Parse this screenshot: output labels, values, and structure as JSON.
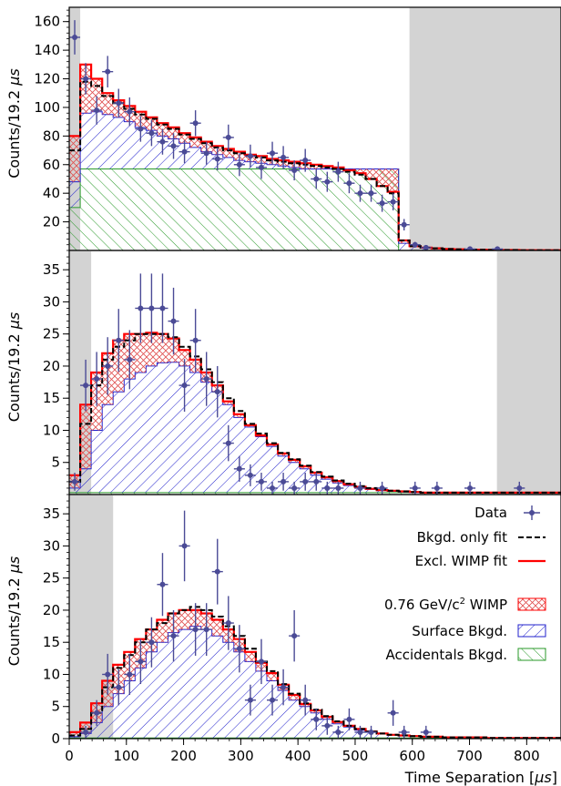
{
  "x_axis": {
    "label": "Time Separation [",
    "label_unit": "μs",
    "label_close": "]",
    "range": [
      0,
      860
    ],
    "ticks": [
      0,
      100,
      200,
      300,
      400,
      500,
      600,
      700,
      800
    ]
  },
  "legend": {
    "data": "Data",
    "bkgd_fit": "Bkgd. only fit",
    "wimp_fit": "Excl. WIMP fit",
    "wimp_prefix": "0.76 GeV/c",
    "wimp_sup": "2",
    "wimp_suffix": " WIMP",
    "surface": "Surface Bkgd.",
    "accidentals": "Accidentals Bkgd."
  },
  "colors": {
    "data": "#4b4b96",
    "wimp_line": "#ff0000",
    "wimp_hatch": "#e05050",
    "surface_hatch": "#2020cc",
    "accidentals_hatch": "#2a9a2a",
    "excluded_region": "#d3d3d3",
    "bkgd_line": "#000000"
  },
  "chart_data": [
    {
      "type": "histogram",
      "ylabel": "Counts/19.2 ",
      "ylabel_unit": "μs",
      "ylim": [
        0,
        170
      ],
      "yticks": [
        20,
        40,
        60,
        80,
        100,
        120,
        140,
        160
      ],
      "excluded_regions": [
        [
          0,
          19.2
        ],
        [
          595,
          860
        ]
      ],
      "bin_width": 19.2,
      "bin_start": 0,
      "accidentals": [
        30,
        57,
        57,
        57,
        57,
        57,
        57,
        57,
        57,
        57,
        57,
        57,
        57,
        57,
        57,
        57,
        57,
        57,
        57,
        57,
        57,
        57,
        57,
        57,
        57,
        57,
        57,
        57,
        57,
        57,
        0,
        0,
        0,
        0,
        0,
        0,
        0,
        0,
        0,
        0,
        0,
        0,
        0,
        0,
        0
      ],
      "surface_plus_accidentals": [
        48,
        96,
        97,
        95,
        93,
        90,
        86,
        84,
        80,
        78,
        75,
        72,
        69,
        67,
        65,
        63,
        62,
        61,
        60,
        59,
        58,
        57,
        57,
        57,
        57,
        57,
        57,
        57,
        57,
        57,
        5,
        3,
        2,
        1.5,
        1,
        0.8,
        0.6,
        0.5,
        0.4,
        0.3,
        0.3,
        0.2,
        0.2,
        0.2,
        0.2
      ],
      "bkgd_fit": [
        70,
        118,
        115,
        108,
        103,
        99,
        95,
        92,
        88,
        85,
        81,
        78,
        75,
        72,
        70,
        68,
        66,
        65,
        63,
        62,
        61,
        60,
        59,
        58,
        57,
        55,
        53,
        50,
        45,
        40,
        7,
        3,
        2,
        1.5,
        1,
        0.8,
        0.6,
        0.5,
        0.4,
        0.3,
        0.3,
        0.2,
        0.2,
        0.2,
        0.2
      ],
      "wimp_fit": [
        80,
        130,
        120,
        110,
        105,
        101,
        97,
        93,
        89,
        86,
        82,
        79,
        76,
        73,
        71,
        69,
        67,
        66,
        64,
        63,
        62,
        61,
        60,
        59,
        58,
        56,
        54,
        50,
        45,
        41,
        7,
        3,
        2,
        1.5,
        1,
        0.8,
        0.6,
        0.5,
        0.4,
        0.3,
        0.3,
        0.2,
        0.2,
        0.2,
        0.2
      ],
      "points": [
        {
          "x": 9.6,
          "y": 149,
          "err": 12
        },
        {
          "x": 28.8,
          "y": 120,
          "err": 11
        },
        {
          "x": 48.0,
          "y": 98,
          "err": 10
        },
        {
          "x": 67.2,
          "y": 125,
          "err": 11
        },
        {
          "x": 86.4,
          "y": 103,
          "err": 10
        },
        {
          "x": 105.6,
          "y": 97,
          "err": 10
        },
        {
          "x": 124.8,
          "y": 85,
          "err": 9
        },
        {
          "x": 144.0,
          "y": 82,
          "err": 9
        },
        {
          "x": 163.2,
          "y": 76,
          "err": 9
        },
        {
          "x": 182.4,
          "y": 73,
          "err": 9
        },
        {
          "x": 201.6,
          "y": 69,
          "err": 8
        },
        {
          "x": 220.8,
          "y": 89,
          "err": 9
        },
        {
          "x": 240.0,
          "y": 68,
          "err": 8
        },
        {
          "x": 259.2,
          "y": 64,
          "err": 8
        },
        {
          "x": 278.4,
          "y": 79,
          "err": 9
        },
        {
          "x": 297.6,
          "y": 60,
          "err": 8
        },
        {
          "x": 316.8,
          "y": 66,
          "err": 8
        },
        {
          "x": 336.0,
          "y": 58,
          "err": 8
        },
        {
          "x": 355.2,
          "y": 68,
          "err": 8
        },
        {
          "x": 374.4,
          "y": 65,
          "err": 8
        },
        {
          "x": 393.6,
          "y": 56,
          "err": 7
        },
        {
          "x": 412.8,
          "y": 63,
          "err": 8
        },
        {
          "x": 432.0,
          "y": 50,
          "err": 7
        },
        {
          "x": 451.2,
          "y": 48,
          "err": 7
        },
        {
          "x": 470.4,
          "y": 55,
          "err": 7
        },
        {
          "x": 489.6,
          "y": 47,
          "err": 7
        },
        {
          "x": 508.8,
          "y": 40,
          "err": 6
        },
        {
          "x": 528.0,
          "y": 40,
          "err": 6
        },
        {
          "x": 547.2,
          "y": 33,
          "err": 6
        },
        {
          "x": 566.4,
          "y": 34,
          "err": 6
        },
        {
          "x": 585.6,
          "y": 18,
          "err": 4
        },
        {
          "x": 604.8,
          "y": 4,
          "err": 2
        },
        {
          "x": 624.0,
          "y": 2,
          "err": 1.4
        },
        {
          "x": 700.8,
          "y": 1,
          "err": 1
        },
        {
          "x": 748.8,
          "y": 1,
          "err": 1
        }
      ]
    },
    {
      "type": "histogram",
      "ylabel": "Counts/19.2 ",
      "ylabel_unit": "μs",
      "ylim": [
        0,
        38
      ],
      "yticks": [
        5,
        10,
        15,
        20,
        25,
        30,
        35
      ],
      "excluded_regions": [
        [
          0,
          38.4
        ],
        [
          748,
          860
        ]
      ],
      "bin_width": 19.2,
      "bin_start": 0,
      "accidentals": [
        0.3,
        0.3,
        0.3,
        0.3,
        0.3,
        0.3,
        0.3,
        0.3,
        0.3,
        0.3,
        0.3,
        0.3,
        0.3,
        0.3,
        0.3,
        0.3,
        0.3,
        0.3,
        0.3,
        0.3,
        0.3,
        0.3,
        0.3,
        0.3,
        0.3,
        0.3,
        0.3,
        0.3,
        0.3,
        0.3,
        0.3,
        0.3,
        0.3,
        0.3,
        0.3,
        0.3,
        0.3,
        0.3,
        0.3,
        0.3,
        0.3,
        0.3,
        0.3,
        0.3,
        0.3
      ],
      "surface_plus_accidentals": [
        1,
        4,
        10,
        14,
        16,
        18,
        19,
        20,
        20.5,
        20.6,
        20,
        19,
        17.5,
        16,
        14,
        12,
        10.5,
        9,
        7.5,
        6,
        5,
        4,
        3,
        2.4,
        1.8,
        1.4,
        1.0,
        0.8,
        0.6,
        0.5,
        0.4,
        0.3,
        0.3,
        0.3,
        0.3,
        0.3,
        0.3,
        0.3,
        0.3,
        0.3,
        0.3,
        0.3,
        0.3,
        0.3,
        0.3
      ],
      "bkgd_fit": [
        2,
        11,
        17,
        21,
        23,
        24,
        25,
        25,
        25,
        24.5,
        23,
        21.5,
        19.5,
        17.5,
        15,
        13,
        11,
        9.5,
        8,
        6.5,
        5.5,
        4.5,
        3.5,
        2.8,
        2.2,
        1.7,
        1.3,
        1.0,
        0.8,
        0.6,
        0.5,
        0.4,
        0.3,
        0.3,
        0.3,
        0.3,
        0.3,
        0.3,
        0.3,
        0.3,
        0.3,
        0.3,
        0.3,
        0.3,
        0.3
      ],
      "wimp_fit": [
        3,
        14,
        19,
        22,
        24,
        25,
        25,
        25.2,
        25,
        24.3,
        22.5,
        21,
        19,
        17,
        14.5,
        12.5,
        10.8,
        9.2,
        7.8,
        6.4,
        5.4,
        4.4,
        3.4,
        2.7,
        2.1,
        1.6,
        1.2,
        0.9,
        0.7,
        0.6,
        0.5,
        0.4,
        0.3,
        0.3,
        0.3,
        0.3,
        0.3,
        0.3,
        0.3,
        0.3,
        0.3,
        0.3,
        0.3,
        0.3,
        0.3
      ],
      "points": [
        {
          "x": 9.6,
          "y": 2,
          "err": 1.4
        },
        {
          "x": 28.8,
          "y": 17,
          "err": 4
        },
        {
          "x": 48.0,
          "y": 18,
          "err": 4.2
        },
        {
          "x": 67.2,
          "y": 20,
          "err": 4.5
        },
        {
          "x": 86.4,
          "y": 24,
          "err": 4.9
        },
        {
          "x": 105.6,
          "y": 21,
          "err": 4.6
        },
        {
          "x": 124.8,
          "y": 29,
          "err": 5.4
        },
        {
          "x": 144.0,
          "y": 29,
          "err": 5.4
        },
        {
          "x": 163.2,
          "y": 29,
          "err": 5.4
        },
        {
          "x": 182.4,
          "y": 27,
          "err": 5.2
        },
        {
          "x": 201.6,
          "y": 17,
          "err": 4.1
        },
        {
          "x": 220.8,
          "y": 24,
          "err": 4.9
        },
        {
          "x": 240.0,
          "y": 18,
          "err": 4.2
        },
        {
          "x": 259.2,
          "y": 16,
          "err": 4
        },
        {
          "x": 278.4,
          "y": 8,
          "err": 2.8
        },
        {
          "x": 297.6,
          "y": 4,
          "err": 2
        },
        {
          "x": 316.8,
          "y": 3,
          "err": 1.7
        },
        {
          "x": 336.0,
          "y": 2,
          "err": 1.4
        },
        {
          "x": 355.2,
          "y": 1,
          "err": 1
        },
        {
          "x": 374.4,
          "y": 2,
          "err": 1.4
        },
        {
          "x": 393.6,
          "y": 1,
          "err": 1
        },
        {
          "x": 412.8,
          "y": 2,
          "err": 1.4
        },
        {
          "x": 432.0,
          "y": 2,
          "err": 1.4
        },
        {
          "x": 451.2,
          "y": 1,
          "err": 1
        },
        {
          "x": 470.4,
          "y": 1,
          "err": 1
        },
        {
          "x": 508.8,
          "y": 1,
          "err": 1
        },
        {
          "x": 547.2,
          "y": 1,
          "err": 1
        },
        {
          "x": 604.8,
          "y": 1,
          "err": 1
        },
        {
          "x": 643.2,
          "y": 1,
          "err": 1
        },
        {
          "x": 700.8,
          "y": 1,
          "err": 1
        },
        {
          "x": 787.2,
          "y": 1,
          "err": 1
        }
      ]
    },
    {
      "type": "histogram",
      "ylabel": "Counts/19.2 ",
      "ylabel_unit": "μs",
      "ylim": [
        0,
        38
      ],
      "yticks": [
        0,
        5,
        10,
        15,
        20,
        25,
        30,
        35
      ],
      "excluded_regions": [
        [
          0,
          76.8
        ]
      ],
      "bin_width": 19.2,
      "bin_start": 0,
      "accidentals": [
        0.1,
        0.1,
        0.1,
        0.1,
        0.1,
        0.1,
        0.1,
        0.1,
        0.1,
        0.1,
        0.1,
        0.1,
        0.1,
        0.1,
        0.1,
        0.1,
        0.1,
        0.1,
        0.1,
        0.1,
        0.1,
        0.1,
        0.1,
        0.1,
        0.1,
        0.1,
        0.1,
        0.1,
        0.1,
        0.1,
        0.1,
        0.1,
        0.1,
        0.1,
        0.1,
        0.1,
        0.1,
        0.1,
        0.1,
        0.1,
        0.1,
        0.1,
        0.1,
        0.1,
        0.1
      ],
      "surface_plus_accidentals": [
        0.3,
        0.8,
        2.5,
        5,
        7,
        9,
        11,
        13.5,
        15,
        16.5,
        17,
        17.5,
        17,
        16,
        15,
        13.5,
        12,
        10.5,
        9,
        7.5,
        6,
        5,
        4,
        3,
        2.3,
        1.8,
        1.3,
        1,
        0.8,
        0.6,
        0.5,
        0.4,
        0.3,
        0.3,
        0.2,
        0.2,
        0.2,
        0.2,
        0.1,
        0.1,
        0.1,
        0.1,
        0.1,
        0.1,
        0.1
      ],
      "bkgd_fit": [
        0.5,
        1.5,
        4,
        8,
        11,
        13,
        15,
        17,
        18,
        19.5,
        20,
        20.5,
        20,
        19,
        17.5,
        16,
        14,
        12,
        10.5,
        8.5,
        7,
        5.5,
        4.5,
        3.5,
        2.7,
        2,
        1.5,
        1.1,
        0.8,
        0.6,
        0.5,
        0.4,
        0.3,
        0.3,
        0.2,
        0.2,
        0.2,
        0.2,
        0.1,
        0.1,
        0.1,
        0.1,
        0.1,
        0.1,
        0.1
      ],
      "wimp_fit": [
        1,
        2.5,
        5.5,
        9,
        11.5,
        13.5,
        15.5,
        17,
        18.5,
        19.5,
        20,
        20,
        19.5,
        18.5,
        17,
        15.5,
        13.5,
        11.8,
        10.2,
        8.4,
        6.8,
        5.4,
        4.4,
        3.4,
        2.6,
        2,
        1.5,
        1.1,
        0.8,
        0.6,
        0.5,
        0.4,
        0.3,
        0.3,
        0.2,
        0.2,
        0.2,
        0.2,
        0.1,
        0.1,
        0.1,
        0.1,
        0.1,
        0.1,
        0.1
      ],
      "points": [
        {
          "x": 28.8,
          "y": 1,
          "err": 1
        },
        {
          "x": 48.0,
          "y": 4,
          "err": 2
        },
        {
          "x": 67.2,
          "y": 10,
          "err": 3.2
        },
        {
          "x": 86.4,
          "y": 8,
          "err": 2.8
        },
        {
          "x": 105.6,
          "y": 10,
          "err": 3.2
        },
        {
          "x": 124.8,
          "y": 12,
          "err": 3.5
        },
        {
          "x": 144.0,
          "y": 15,
          "err": 3.9
        },
        {
          "x": 163.2,
          "y": 24,
          "err": 4.9
        },
        {
          "x": 182.4,
          "y": 16,
          "err": 4
        },
        {
          "x": 201.6,
          "y": 30,
          "err": 5.5
        },
        {
          "x": 220.8,
          "y": 17,
          "err": 4.1
        },
        {
          "x": 240.0,
          "y": 17,
          "err": 4.1
        },
        {
          "x": 259.2,
          "y": 26,
          "err": 5.1
        },
        {
          "x": 278.4,
          "y": 18,
          "err": 4.2
        },
        {
          "x": 297.6,
          "y": 14,
          "err": 3.7
        },
        {
          "x": 316.8,
          "y": 6,
          "err": 2.4
        },
        {
          "x": 336.0,
          "y": 12,
          "err": 3.5
        },
        {
          "x": 355.2,
          "y": 6,
          "err": 2.4
        },
        {
          "x": 374.4,
          "y": 8,
          "err": 2.8
        },
        {
          "x": 393.6,
          "y": 16,
          "err": 4
        },
        {
          "x": 412.8,
          "y": 6,
          "err": 2.4
        },
        {
          "x": 432.0,
          "y": 3,
          "err": 1.7
        },
        {
          "x": 451.2,
          "y": 2,
          "err": 1.4
        },
        {
          "x": 470.4,
          "y": 1,
          "err": 1
        },
        {
          "x": 489.6,
          "y": 3,
          "err": 1.7
        },
        {
          "x": 508.8,
          "y": 1,
          "err": 1
        },
        {
          "x": 528.0,
          "y": 1,
          "err": 1
        },
        {
          "x": 566.4,
          "y": 4,
          "err": 2
        },
        {
          "x": 585.6,
          "y": 1,
          "err": 1
        },
        {
          "x": 624.0,
          "y": 1,
          "err": 1
        }
      ]
    }
  ]
}
